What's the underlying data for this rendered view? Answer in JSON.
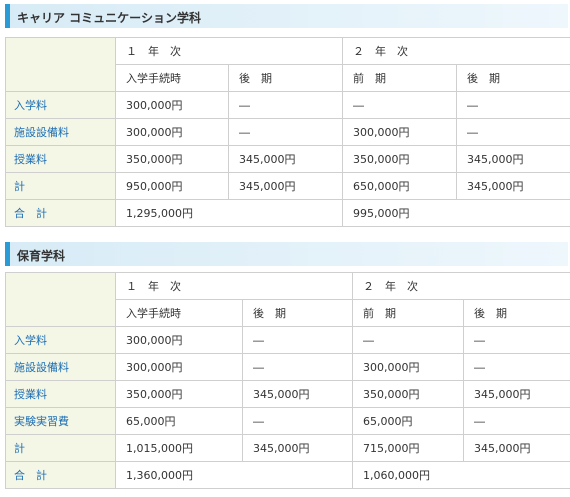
{
  "section1": {
    "title": "キャリア コミュニケーション学科",
    "year1": "１　年　次",
    "year2": "２　年　次",
    "p1": "入学手続時",
    "p2": "後　期",
    "p3": "前　期",
    "p4": "後　期",
    "rows": [
      {
        "label": "入学料",
        "v": [
          "300,000円",
          "―",
          "―",
          "―"
        ]
      },
      {
        "label": "施設設備料",
        "v": [
          "300,000円",
          "―",
          "300,000円",
          "―"
        ]
      },
      {
        "label": "授業料",
        "v": [
          "350,000円",
          "345,000円",
          "350,000円",
          "345,000円"
        ]
      },
      {
        "label": "計",
        "v": [
          "950,000円",
          "345,000円",
          "650,000円",
          "345,000円"
        ]
      }
    ],
    "total_label": "合　計",
    "total1": "1,295,000円",
    "total2": "995,000円"
  },
  "section2": {
    "title": "保育学科",
    "year1": "１　年　次",
    "year2": "２　年　次",
    "p1": "入学手続時",
    "p2": "後　期",
    "p3": "前　期",
    "p4": "後　期",
    "rows": [
      {
        "label": "入学料",
        "v": [
          "300,000円",
          "―",
          "―",
          "―"
        ]
      },
      {
        "label": "施設設備料",
        "v": [
          "300,000円",
          "―",
          "300,000円",
          "―"
        ]
      },
      {
        "label": "授業料",
        "v": [
          "350,000円",
          "345,000円",
          "350,000円",
          "345,000円"
        ]
      },
      {
        "label": "実験実習費",
        "v": [
          "65,000円",
          "―",
          "65,000円",
          "―"
        ]
      },
      {
        "label": "計",
        "v": [
          "1,015,000円",
          "345,000円",
          "715,000円",
          "345,000円"
        ]
      }
    ],
    "total_label": "合　計",
    "total1": "1,360,000円",
    "total2": "1,060,000円"
  }
}
